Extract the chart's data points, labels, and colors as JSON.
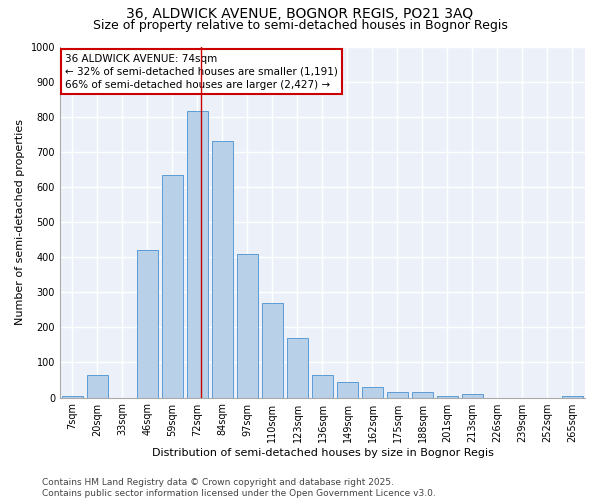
{
  "title_line1": "36, ALDWICK AVENUE, BOGNOR REGIS, PO21 3AQ",
  "title_line2": "Size of property relative to semi-detached houses in Bognor Regis",
  "xlabel": "Distribution of semi-detached houses by size in Bognor Regis",
  "ylabel": "Number of semi-detached properties",
  "categories": [
    "7sqm",
    "20sqm",
    "33sqm",
    "46sqm",
    "59sqm",
    "72sqm",
    "84sqm",
    "97sqm",
    "110sqm",
    "123sqm",
    "136sqm",
    "149sqm",
    "162sqm",
    "175sqm",
    "188sqm",
    "201sqm",
    "213sqm",
    "226sqm",
    "239sqm",
    "252sqm",
    "265sqm"
  ],
  "bar_values": [
    5,
    65,
    0,
    420,
    635,
    815,
    730,
    410,
    270,
    170,
    65,
    45,
    30,
    17,
    17,
    5,
    10,
    0,
    0,
    0,
    5
  ],
  "bar_color": "#b8d0e8",
  "bar_edge_color": "#5b9bd5",
  "annotation_text": "36 ALDWICK AVENUE: 74sqm\n← 32% of semi-detached houses are smaller (1,191)\n66% of semi-detached houses are larger (2,427) →",
  "annotation_box_color": "#ffffff",
  "annotation_box_edge": "#cc0000",
  "vline_color": "#cc0000",
  "vline_x": 5.15,
  "ylim": [
    0,
    1000
  ],
  "yticks": [
    0,
    100,
    200,
    300,
    400,
    500,
    600,
    700,
    800,
    900,
    1000
  ],
  "background_color": "#ecf1f9",
  "grid_color": "#ffffff",
  "footer_text": "Contains HM Land Registry data © Crown copyright and database right 2025.\nContains public sector information licensed under the Open Government Licence v3.0.",
  "title_fontsize": 10,
  "subtitle_fontsize": 9,
  "axis_label_fontsize": 8,
  "tick_fontsize": 7,
  "annotation_fontsize": 7.5,
  "footer_fontsize": 6.5
}
